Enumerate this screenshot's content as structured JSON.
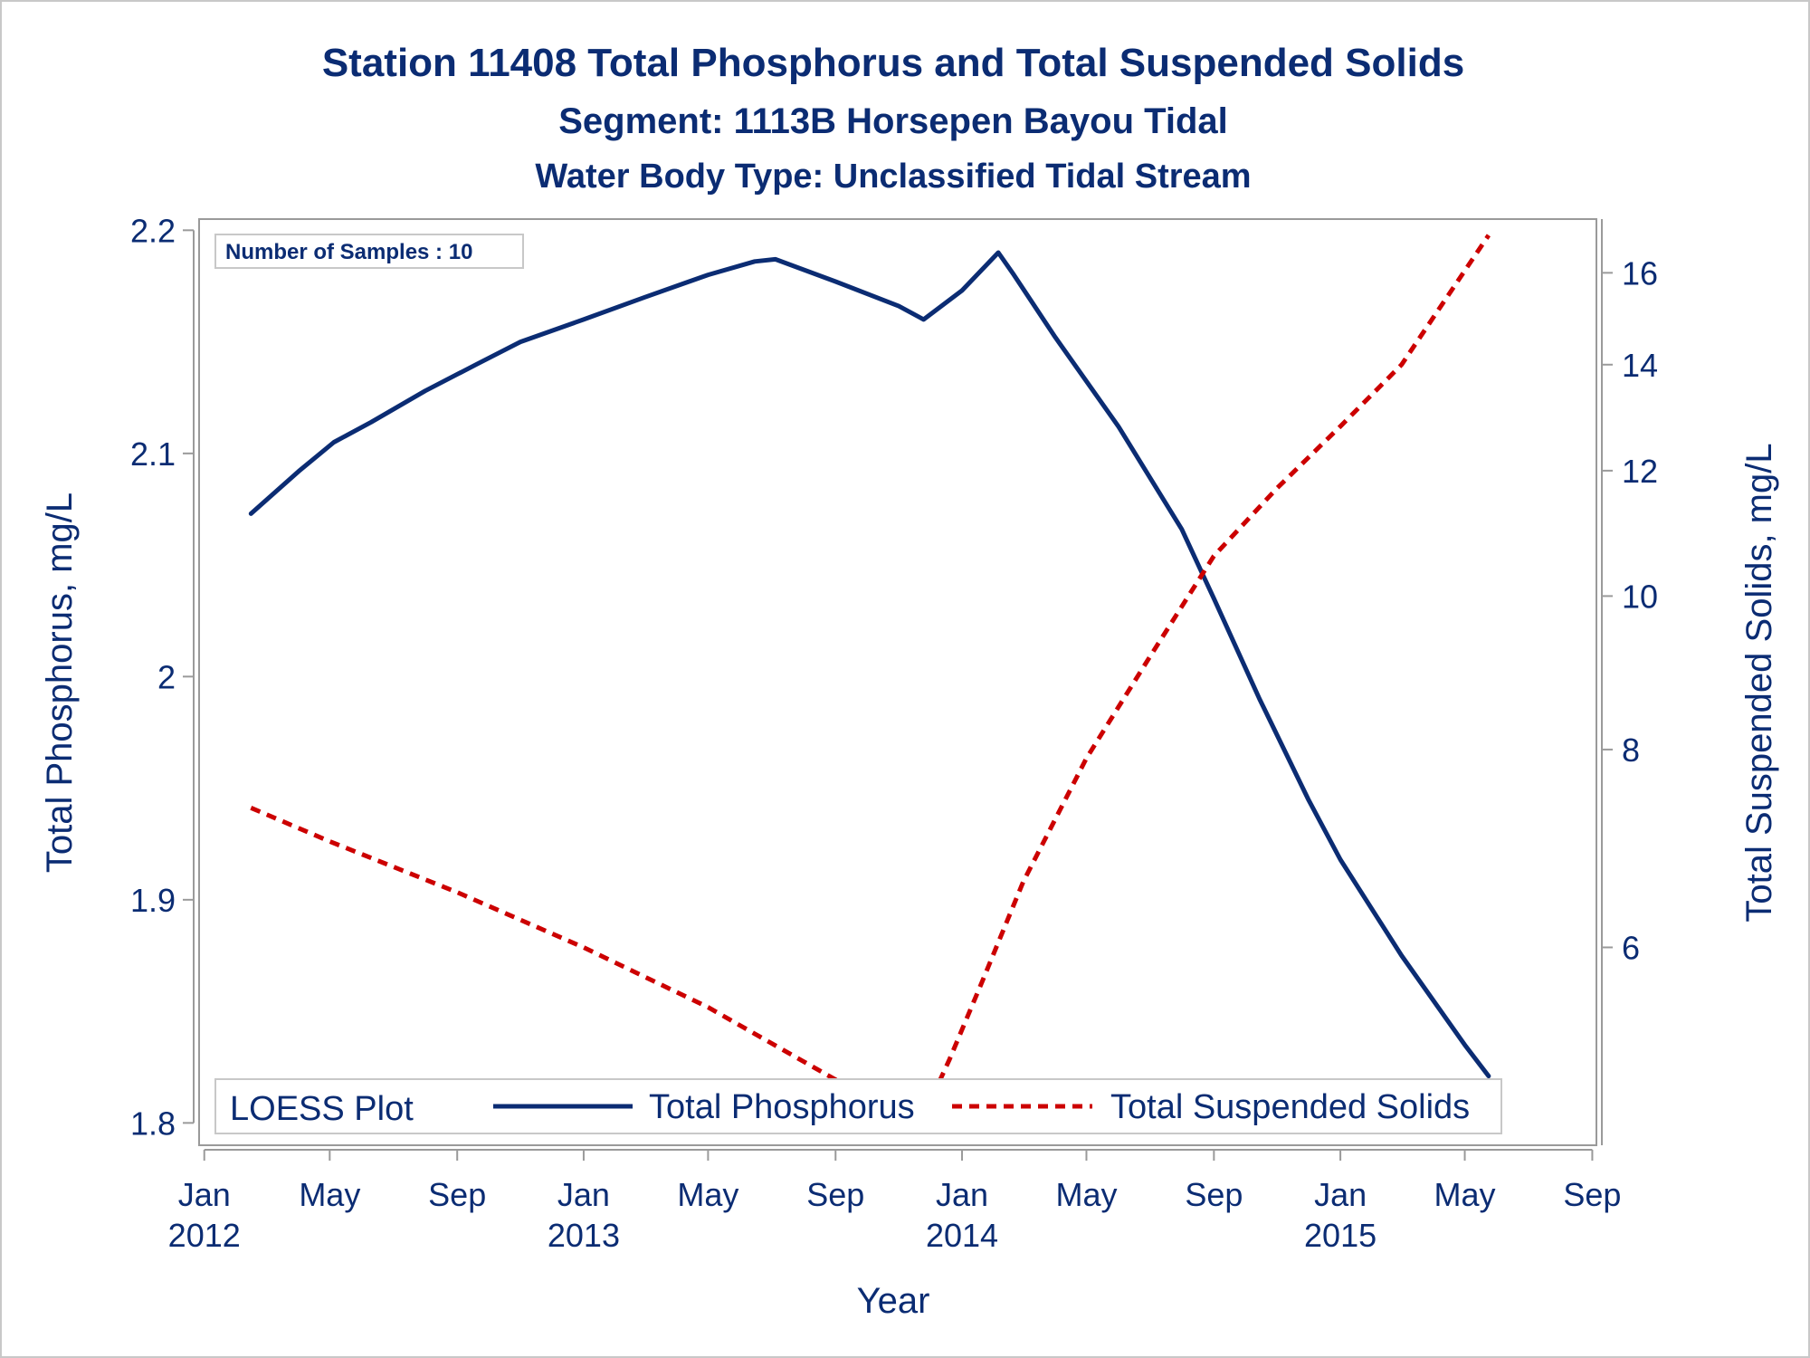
{
  "chart_data": {
    "type": "line",
    "title": "Station 11408  Total Phosphorus and Total Suspended Solids",
    "subtitle": "Segment: 1113B  Horsepen Bayou Tidal",
    "subtitle2": "Water Body Type: Unclassified Tidal Stream",
    "xlabel": "Year",
    "ylabel": "Total Phosphorus, mg/L",
    "y2label": "Total Suspended Solids, mg/L",
    "x_ticks": [
      {
        "date": "2012-01-01",
        "label": "Jan",
        "year": "2012"
      },
      {
        "date": "2012-05-01",
        "label": "May",
        "year": ""
      },
      {
        "date": "2012-09-01",
        "label": "Sep",
        "year": ""
      },
      {
        "date": "2013-01-01",
        "label": "Jan",
        "year": "2013"
      },
      {
        "date": "2013-05-01",
        "label": "May",
        "year": ""
      },
      {
        "date": "2013-09-01",
        "label": "Sep",
        "year": ""
      },
      {
        "date": "2014-01-01",
        "label": "Jan",
        "year": "2014"
      },
      {
        "date": "2014-05-01",
        "label": "May",
        "year": ""
      },
      {
        "date": "2014-09-01",
        "label": "Sep",
        "year": ""
      },
      {
        "date": "2015-01-01",
        "label": "Jan",
        "year": "2015"
      },
      {
        "date": "2015-05-01",
        "label": "May",
        "year": ""
      },
      {
        "date": "2015-09-01",
        "label": "Sep",
        "year": ""
      }
    ],
    "xlim": [
      "2011-12-27",
      "2015-09-05"
    ],
    "ylim": [
      1.79,
      2.205
    ],
    "y_ticks": [
      1.8,
      1.9,
      2,
      2.1,
      2.2
    ],
    "y2_scale": "log",
    "y2lim": [
      4.5,
      17.3
    ],
    "y2_ticks": [
      6,
      8,
      10,
      12,
      14,
      16
    ],
    "grid": false,
    "legend": {
      "title": "LOESS Plot",
      "position": "bottom-inside"
    },
    "inset_text": "Number of Samples : 10",
    "series": [
      {
        "name": "Total Phosphorus",
        "axis": "left",
        "color": "#0b2c73",
        "style": "solid",
        "points": [
          [
            "2012-02-15",
            2.073
          ],
          [
            "2012-04-01",
            2.092
          ],
          [
            "2012-05-05",
            2.105
          ],
          [
            "2012-06-10",
            2.114
          ],
          [
            "2012-08-01",
            2.128
          ],
          [
            "2012-09-20",
            2.14
          ],
          [
            "2012-11-01",
            2.15
          ],
          [
            "2013-01-01",
            2.16
          ],
          [
            "2013-03-01",
            2.17
          ],
          [
            "2013-05-01",
            2.18
          ],
          [
            "2013-06-15",
            2.186
          ],
          [
            "2013-07-05",
            2.187
          ],
          [
            "2013-09-01",
            2.177
          ],
          [
            "2013-11-01",
            2.166
          ],
          [
            "2013-11-25",
            2.16
          ],
          [
            "2014-01-01",
            2.173
          ],
          [
            "2014-02-05",
            2.19
          ],
          [
            "2014-02-20",
            2.18
          ],
          [
            "2014-04-01",
            2.152
          ],
          [
            "2014-06-01",
            2.112
          ],
          [
            "2014-08-01",
            2.066
          ],
          [
            "2014-09-01",
            2.035
          ],
          [
            "2014-10-15",
            1.99
          ],
          [
            "2014-12-01",
            1.945
          ],
          [
            "2015-01-01",
            1.918
          ],
          [
            "2015-03-01",
            1.875
          ],
          [
            "2015-05-01",
            1.835
          ],
          [
            "2015-05-24",
            1.821
          ]
        ]
      },
      {
        "name": "Total Suspended Solids",
        "axis": "right",
        "color": "#cc0000",
        "style": "dashed",
        "points": [
          [
            "2012-02-15",
            7.35
          ],
          [
            "2012-05-01",
            7.0
          ],
          [
            "2012-09-01",
            6.5
          ],
          [
            "2013-01-01",
            6.0
          ],
          [
            "2013-05-01",
            5.5
          ],
          [
            "2013-09-01",
            4.95
          ],
          [
            "2013-11-20",
            4.62
          ],
          [
            "2013-12-20",
            5.1
          ],
          [
            "2014-01-20",
            5.7
          ],
          [
            "2014-03-01",
            6.6
          ],
          [
            "2014-05-01",
            7.9
          ],
          [
            "2014-07-01",
            9.15
          ],
          [
            "2014-09-01",
            10.6
          ],
          [
            "2014-11-01",
            11.7
          ],
          [
            "2015-01-01",
            12.8
          ],
          [
            "2015-03-01",
            14.0
          ],
          [
            "2015-05-24",
            16.9
          ]
        ]
      }
    ]
  }
}
